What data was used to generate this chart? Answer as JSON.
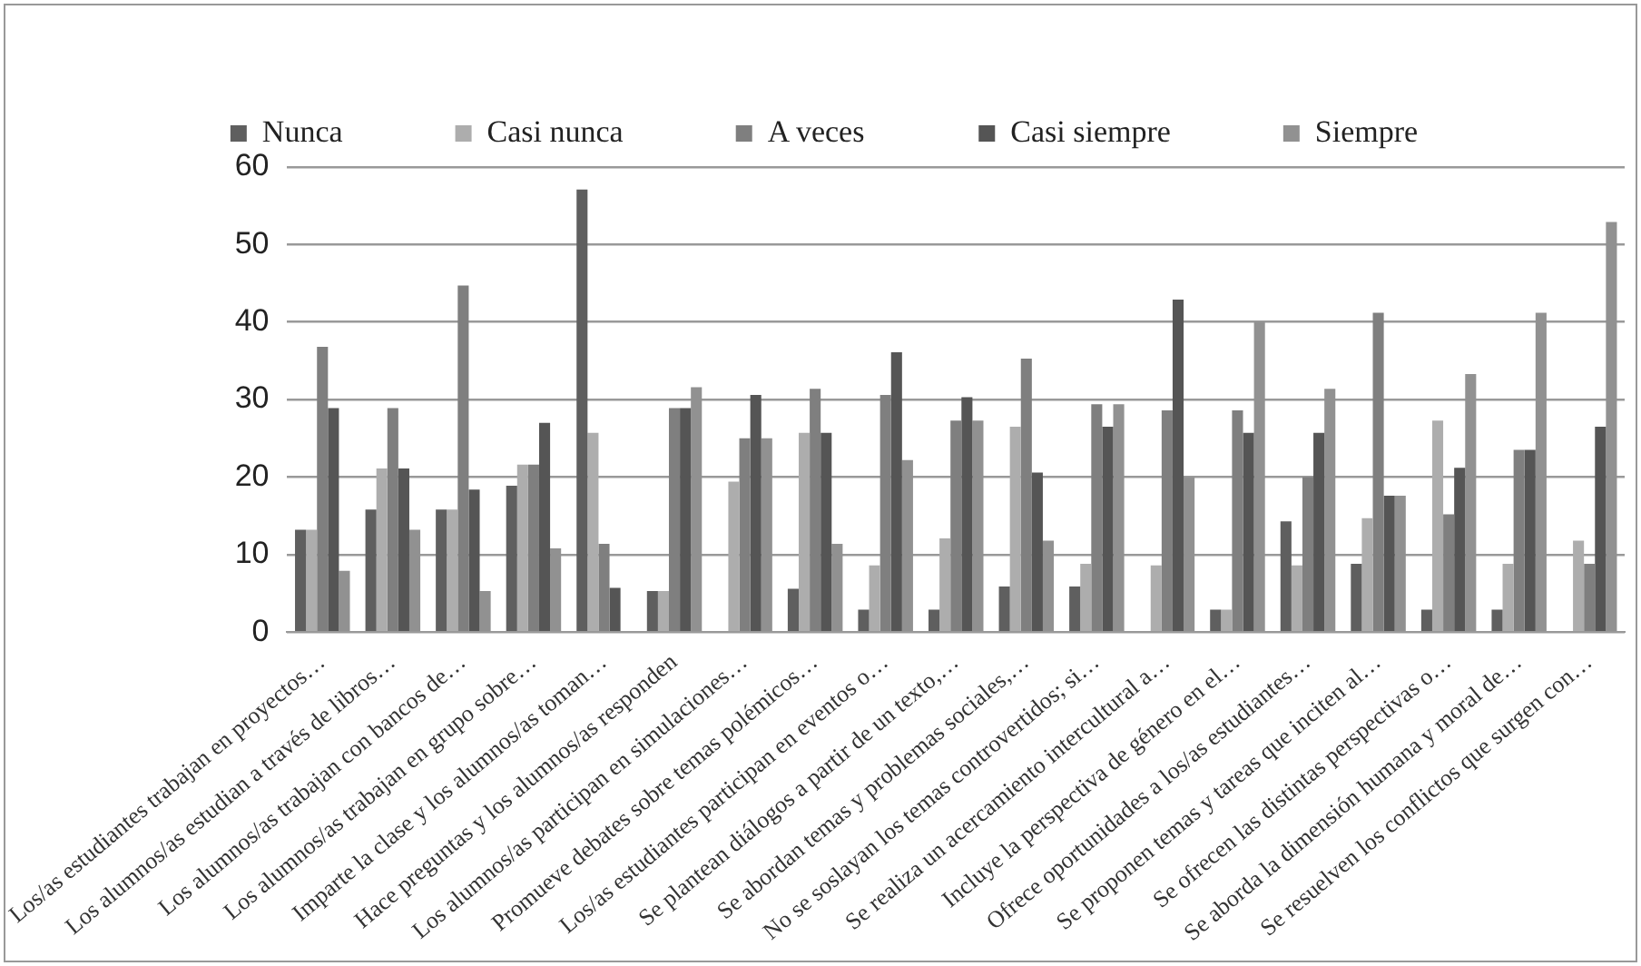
{
  "chart_data": {
    "type": "bar",
    "categories": [
      "Los/as estudiantes trabajan en proyectos…",
      "Los alumnos/as estudian a través de libros…",
      "Los alumnos/as trabajan con bancos de…",
      "Los alumnos/as trabajan en grupo sobre…",
      "Imparte la clase y los alumnos/as toman…",
      "Hace preguntas y los alumnos/as responden",
      "Los alumnos/as participan en simulaciones…",
      "Promueve debates sobre temas polémicos…",
      "Los/as estudiantes participan en eventos o…",
      "Se plantean diálogos a partir de un texto,…",
      "Se abordan temas y problemas sociales,…",
      "No se soslayan los temas controvertidos; si…",
      "Se realiza un acercamiento intercultural a…",
      "Incluye la perspectiva de género en el…",
      "Ofrece oportunidades a los/as estudiantes…",
      "Se proponen temas y tareas que inciten al…",
      "Se ofrecen las distintas perspectivas o…",
      "Se aborda la dimensión humana y moral de…",
      "Se resuelven los conflictos que surgen con…"
    ],
    "series": [
      {
        "name": "Nunca",
        "color": "#5f5f5f",
        "values": [
          13.2,
          15.8,
          15.8,
          18.9,
          57.1,
          5.3,
          0,
          5.6,
          2.9,
          2.9,
          5.9,
          5.9,
          0,
          2.9,
          14.3,
          8.8,
          2.9,
          2.9,
          0
        ]
      },
      {
        "name": "Casi nunca",
        "color": "#adadad",
        "values": [
          13.2,
          21.1,
          15.8,
          21.6,
          25.7,
          5.3,
          19.4,
          25.7,
          8.6,
          12.1,
          26.5,
          8.8,
          8.6,
          2.9,
          8.6,
          14.7,
          27.3,
          8.8,
          11.8
        ]
      },
      {
        "name": "A veces",
        "color": "#7f7f7f",
        "values": [
          36.8,
          28.9,
          44.7,
          21.6,
          11.4,
          28.9,
          25.0,
          31.4,
          30.6,
          27.3,
          35.3,
          29.4,
          28.6,
          28.6,
          20.0,
          41.2,
          15.2,
          23.5,
          8.8
        ]
      },
      {
        "name": "Casi siempre",
        "color": "#555555",
        "values": [
          28.9,
          21.1,
          18.4,
          27.0,
          5.7,
          28.9,
          30.6,
          25.7,
          36.1,
          30.3,
          20.6,
          26.5,
          42.9,
          25.7,
          25.7,
          17.6,
          21.2,
          23.5,
          26.5
        ]
      },
      {
        "name": "Siempre",
        "color": "#919191",
        "values": [
          7.9,
          13.2,
          5.3,
          10.8,
          0,
          31.6,
          25.0,
          11.4,
          22.2,
          27.3,
          11.8,
          29.4,
          20.0,
          40.0,
          31.4,
          17.6,
          33.3,
          41.2,
          52.9
        ]
      }
    ],
    "ylim": [
      0,
      60
    ],
    "yticks": [
      0,
      10,
      20,
      30,
      40,
      50,
      60
    ],
    "grid": "y",
    "legend": "top"
  }
}
